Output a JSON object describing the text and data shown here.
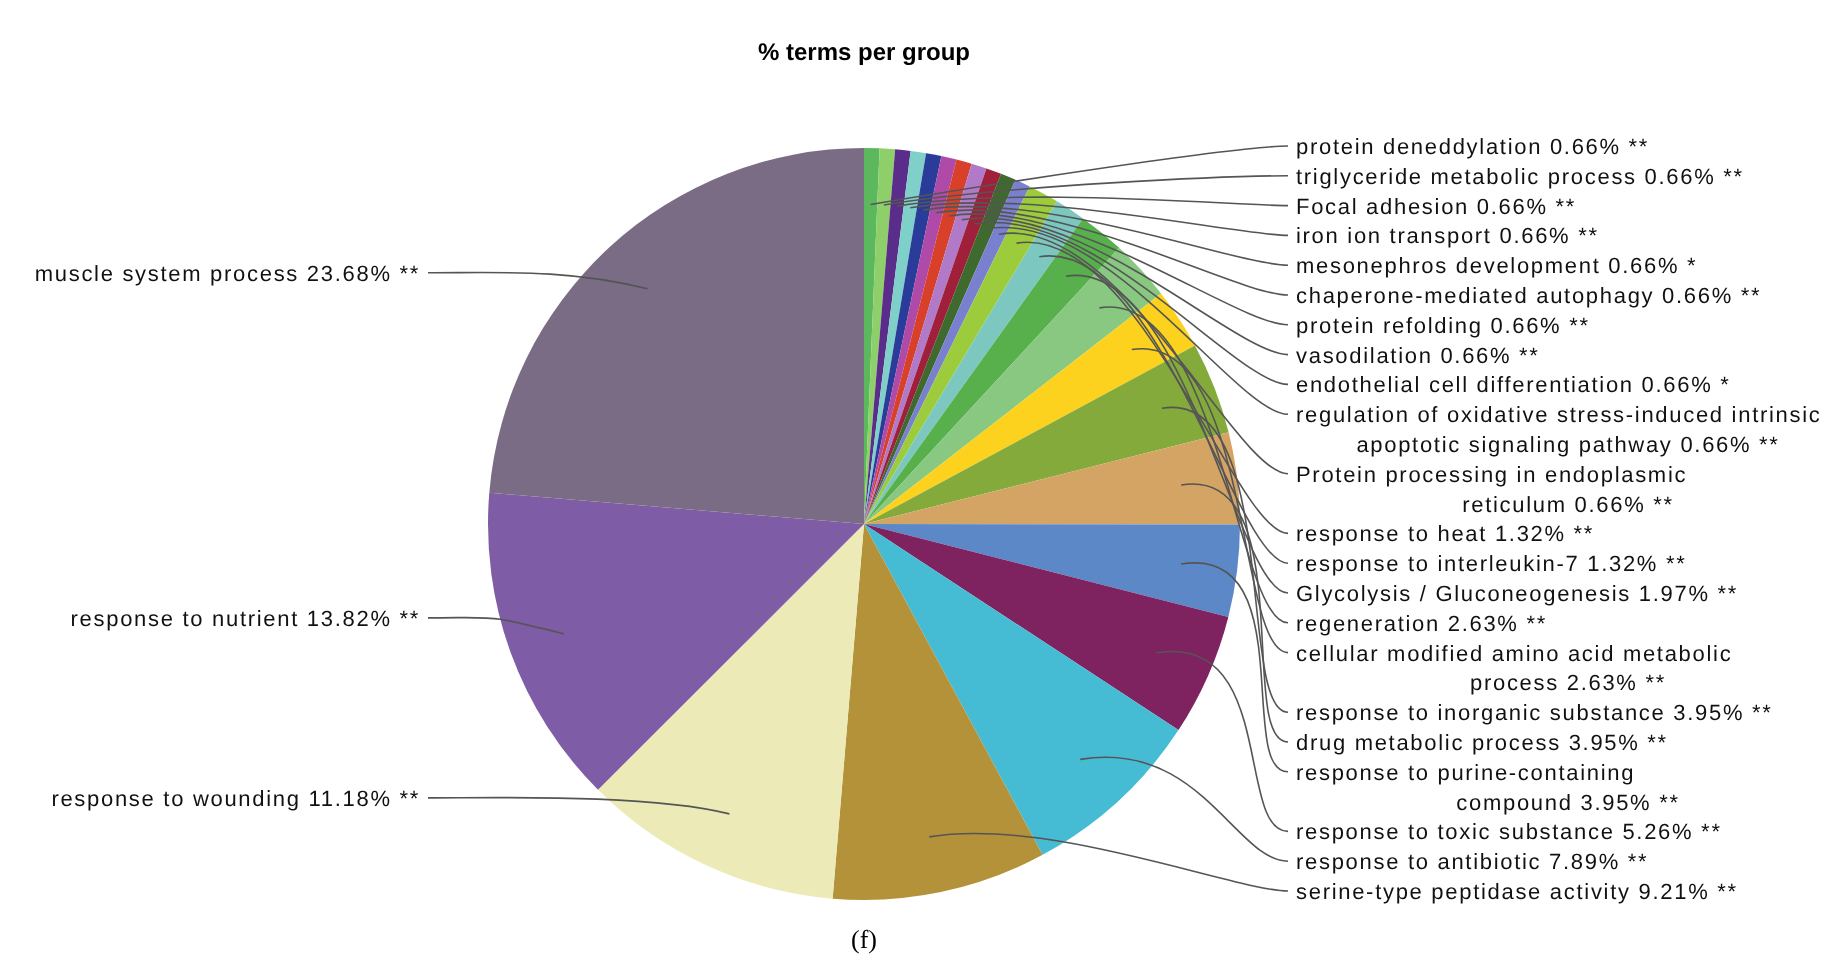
{
  "chart_data": {
    "type": "pie",
    "title": "% terms per group",
    "categories": [
      "protein deneddylation",
      "triglyceride metabolic process",
      "Focal adhesion",
      "iron ion transport",
      "mesonephros development",
      "chaperone-mediated autophagy",
      "protein refolding",
      "vasodilation",
      "endothelial cell differentiation",
      "regulation of oxidative stress-induced intrinsic apoptotic signaling pathway",
      "Protein processing in endoplasmic reticulum",
      "response to heat",
      "response to interleukin-7",
      "Glycolysis / Gluconeogenesis",
      "regeneration",
      "cellular modified amino acid metabolic process",
      "response to inorganic substance",
      "drug metabolic process",
      "response to purine-containing compound",
      "response to toxic substance",
      "response to antibiotic",
      "serine-type peptidase activity",
      "response to wounding",
      "response to nutrient",
      "muscle system process"
    ],
    "values": [
      0.66,
      0.66,
      0.66,
      0.66,
      0.66,
      0.66,
      0.66,
      0.66,
      0.66,
      0.66,
      0.66,
      1.32,
      1.32,
      1.97,
      2.63,
      2.63,
      3.95,
      3.95,
      3.95,
      5.26,
      7.89,
      9.21,
      11.18,
      13.82,
      23.68
    ],
    "value_labels": [
      "0.66% **",
      "0.66% **",
      "0.66% **",
      "0.66% **",
      "0.66% *",
      "0.66% **",
      "0.66% **",
      "0.66% **",
      "0.66% *",
      "0.66% **",
      "0.66% **",
      "1.32% **",
      "1.32% **",
      "1.97% **",
      "2.63% **",
      "2.63% **",
      "3.95% **",
      "3.95% **",
      "3.95% **",
      "5.26% **",
      "7.89% **",
      "9.21% **",
      "11.18% **",
      "13.82% **",
      "23.68% **"
    ],
    "colors": [
      "#5cb85c",
      "#8fcf6a",
      "#5a2d8a",
      "#7fd0c8",
      "#2a3c9a",
      "#b04aa8",
      "#d8402a",
      "#b07ac8",
      "#a0203c",
      "#3e6a2e",
      "#7a80d0",
      "#9ccc3c",
      "#7cc8c0",
      "#58b04c",
      "#88c880",
      "#fcd21e",
      "#84aa3c",
      "#d4a464",
      "#5c88c8",
      "#7e2260",
      "#46bcd4",
      "#b4923a",
      "#ecebb8",
      "#7e5ca6",
      "#7a6c84"
    ],
    "annotations": [
      "(f)"
    ]
  }
}
